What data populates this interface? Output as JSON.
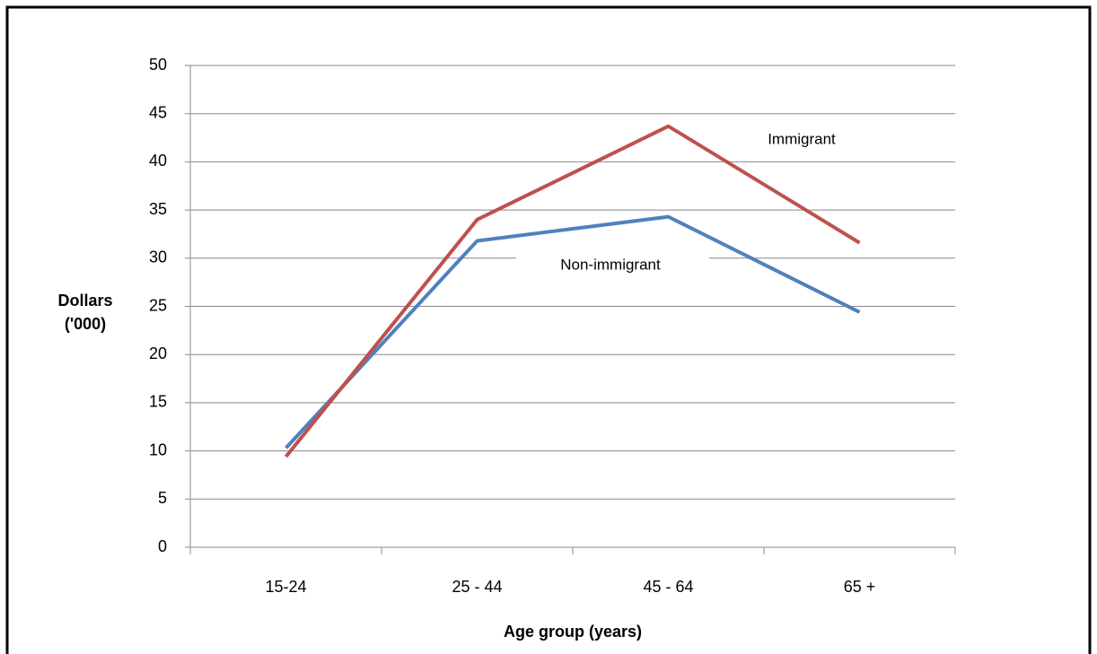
{
  "chart_data": {
    "type": "line",
    "categories": [
      "15-24",
      "25 - 44",
      "45 - 64",
      "65 +"
    ],
    "series": [
      {
        "name": "Non-immigrant",
        "color": "#4f81bd",
        "values": [
          10.3,
          31.8,
          34.3,
          24.4
        ]
      },
      {
        "name": "Immigrant",
        "color": "#c0504d",
        "values": [
          9.4,
          34.0,
          43.7,
          31.6
        ]
      }
    ],
    "x_label": "Age group (years)",
    "y_label": "Dollars ('000)",
    "ylim": [
      0,
      50
    ],
    "yticks": [
      0,
      5,
      10,
      15,
      20,
      25,
      30,
      35,
      40,
      45,
      50
    ],
    "grid": true
  }
}
